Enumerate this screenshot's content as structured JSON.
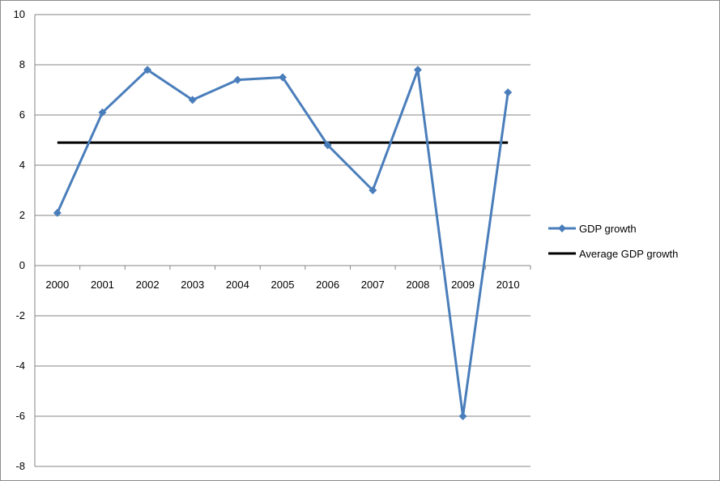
{
  "chart_data": {
    "type": "line",
    "title": "",
    "xlabel": "",
    "ylabel": "",
    "categories": [
      "2000",
      "2001",
      "2002",
      "2003",
      "2004",
      "2005",
      "2006",
      "2007",
      "2008",
      "2009",
      "2010"
    ],
    "ylim": [
      -8,
      10
    ],
    "ytick_step": 2,
    "grid": true,
    "legend_position": "right",
    "series": [
      {
        "name": "GDP growth",
        "values": [
          2.1,
          6.1,
          7.8,
          6.6,
          7.4,
          7.5,
          4.8,
          3.0,
          7.8,
          -6.0,
          6.9
        ],
        "color": "#4a7ebb",
        "marker": "diamond"
      },
      {
        "name": "Average GDP growth",
        "values": [
          4.9,
          4.9,
          4.9,
          4.9,
          4.9,
          4.9,
          4.9,
          4.9,
          4.9,
          4.9,
          4.9
        ],
        "color": "#000000",
        "marker": "none"
      }
    ]
  }
}
